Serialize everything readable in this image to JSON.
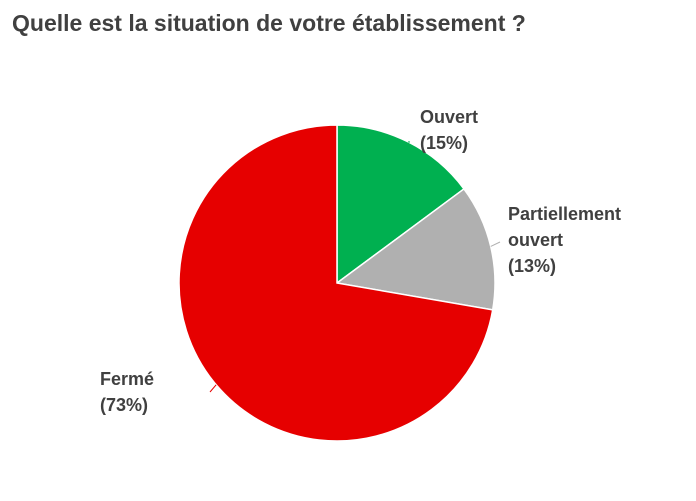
{
  "chart_data": {
    "type": "pie",
    "title": "Quelle est la situation de votre établissement ?",
    "start_angle_deg": 0,
    "direction": "clockwise",
    "slices": [
      {
        "label_lines": [
          "Ouvert",
          "(15%)"
        ],
        "value": 15,
        "color": "#00b050"
      },
      {
        "label_lines": [
          "Partiellement",
          "ouvert",
          "(13%)"
        ],
        "value": 13,
        "color": "#b0b0b0"
      },
      {
        "label_lines": [
          "Fermé",
          "(73%)"
        ],
        "value": 73,
        "color": "#e60000"
      }
    ]
  }
}
